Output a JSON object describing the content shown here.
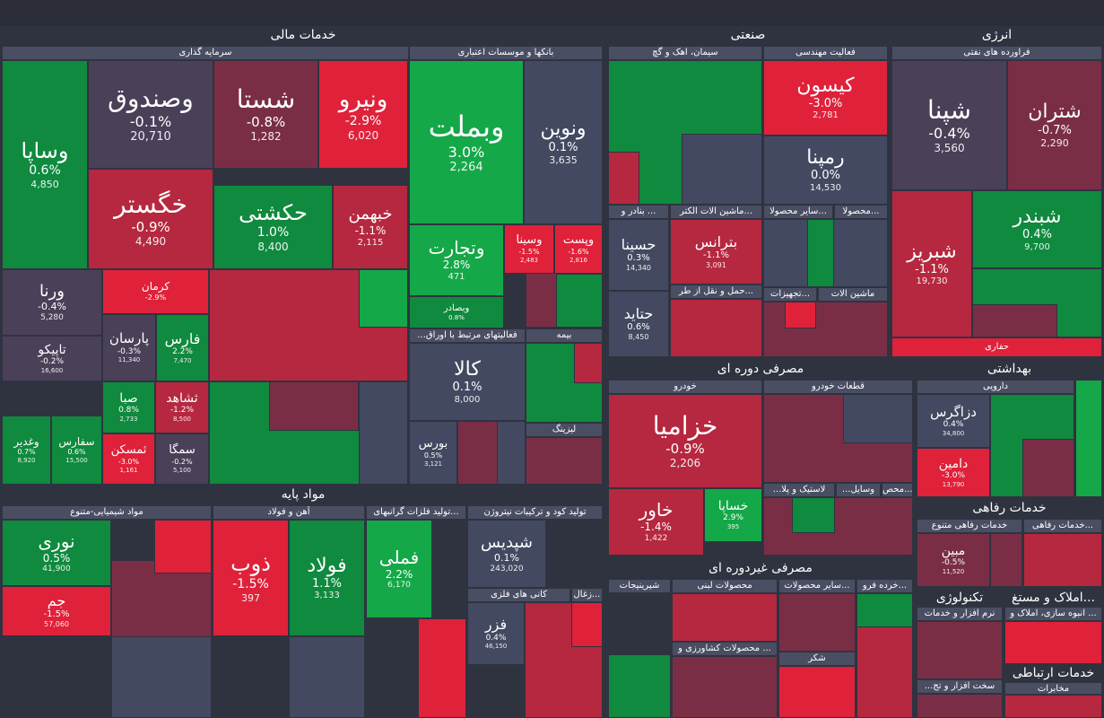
{
  "colors": {
    "background": "#2f3340",
    "header": "#4a4e63",
    "strong_green": "#14a848",
    "green": "#0f8a3e",
    "neutral": "#434960",
    "red": "#b5283f",
    "strong_red": "#e0213a",
    "dark_red": "#7a2e45"
  },
  "sectors": {
    "financial": "خدمات مالی",
    "industry": "صنعتی",
    "energy": "انرژی",
    "basic": "مواد پایه",
    "cyclical": "مصرفی دوره ای",
    "health": "بهداشتی",
    "welfare": "خدمات رفاهی",
    "noncyclical": "مصرفی غیردوره ای",
    "tech": "تکنولوژی",
    "realestate": "املاک و مستغ...",
    "telecom": "خدمات ارتباطی"
  },
  "industries": {
    "investment": "سرمایه گذاری",
    "banks": "بانکها و موسسات اعتباری",
    "cement": "سیمان، اهک و گچ",
    "engineering": "فعالیت مهندسی",
    "oil_products": "فراورده های نفتی",
    "financial_related": "...فعالیتهای مرتبط با اوراق",
    "insurance": "بیمه",
    "leasing": "لیزینگ",
    "ports": "بنادر و ...",
    "elec_machines": "ماشین الات الکتر...",
    "other_products": "سایر محصولا...",
    "products": "محصولا...",
    "transport": "حمل و نقل از طر...",
    "equipment": "تجهیزات...",
    "machinery": "ماشین الات",
    "refinery_trade": "حفاری",
    "chemical": "مواد شیمیایی-متنوع",
    "steel": "آهن و فولاد",
    "metals": "تولید فلزات گرانبهای...",
    "fertilizer": "تولید کود و ترکیبات نیتروژن",
    "metal_ores": "کانی های فلزی",
    "coal": "زغال...",
    "auto": "خودرو",
    "auto_parts": "قطعات خودرو",
    "rubber": "...لاستیک و پلا",
    "devices": "...وسایل",
    "prod": "محص...",
    "pharma": "دارویی",
    "welfare_misc": "خدمات رفاهی متنوع",
    "welfare2": "خدمات رفاهی...",
    "sweets": "شیرینیجات",
    "dairy": "محصولات لبنی",
    "other_prod2": "سایر محصولات...",
    "retail": "خرده فرو...",
    "agri": "محصولات کشاورزی و ...",
    "sugar": "شکر",
    "software": "نرم افزار و خدمات",
    "construction": "انبوه سازی، املاک و ...",
    "software2": "...سخت افزار و تج",
    "telecoms": "مخابرات"
  },
  "tiles": [
    {
      "name": "وساپا",
      "pct": "0.6%",
      "val": "4,850"
    },
    {
      "name": "وصندوق",
      "pct": "-0.1%",
      "val": "20,710"
    },
    {
      "name": "شستا",
      "pct": "-0.8%",
      "val": "1,282"
    },
    {
      "name": "ونیرو",
      "pct": "-2.9%",
      "val": "6,020"
    },
    {
      "name": "خگستر",
      "pct": "-0.9%",
      "val": "4,490"
    },
    {
      "name": "حکشتی",
      "pct": "1.0%",
      "val": "8,400"
    },
    {
      "name": "خبهمن",
      "pct": "-1.1%",
      "val": "2,115"
    },
    {
      "name": "وبملت",
      "pct": "3.0%",
      "val": "2,264"
    },
    {
      "name": "ونوین",
      "pct": "0.1%",
      "val": "3,635"
    },
    {
      "name": "وتجارت",
      "pct": "2.8%",
      "val": "471"
    },
    {
      "name": "وسینا",
      "pct": "-1.5%",
      "val": "2,483"
    },
    {
      "name": "وپست",
      "pct": "-1.6%",
      "val": "2,816"
    },
    {
      "name": "وبصادر",
      "pct": "0.8%",
      "val": ""
    },
    {
      "name": "ورنا",
      "pct": "-0.4%",
      "val": "5,280"
    },
    {
      "name": "کرمان",
      "pct": "-2.9%",
      "val": ""
    },
    {
      "name": "پارسان",
      "pct": "-0.3%",
      "val": "11,340"
    },
    {
      "name": "فارس",
      "pct": "2.2%",
      "val": "7,470"
    },
    {
      "name": "تاپیکو",
      "pct": "-0.2%",
      "val": "16,600"
    },
    {
      "name": "صبا",
      "pct": "0.8%",
      "val": "2,733"
    },
    {
      "name": "ثشاهد",
      "pct": "-1.2%",
      "val": "8,500"
    },
    {
      "name": "وغدیر",
      "pct": "0.7%",
      "val": "8,920"
    },
    {
      "name": "سفارس",
      "pct": "0.6%",
      "val": "15,500"
    },
    {
      "name": "ثمسکن",
      "pct": "-3.0%",
      "val": "1,161"
    },
    {
      "name": "سمگا",
      "pct": "-0.2%",
      "val": "5,100"
    },
    {
      "name": "کالا",
      "pct": "0.1%",
      "val": "8,000"
    },
    {
      "name": "بورس",
      "pct": "0.5%",
      "val": "3,121"
    },
    {
      "name": "کیسون",
      "pct": "-3.0%",
      "val": "2,781"
    },
    {
      "name": "رمپنا",
      "pct": "0.0%",
      "val": "14,530"
    },
    {
      "name": "حسینا",
      "pct": "0.3%",
      "val": "14,340"
    },
    {
      "name": "بترانس",
      "pct": "-1.1%",
      "val": "3,091"
    },
    {
      "name": "حتاید",
      "pct": "0.6%",
      "val": "8,450"
    },
    {
      "name": "شپنا",
      "pct": "-0.4%",
      "val": "3,560"
    },
    {
      "name": "شتران",
      "pct": "-0.7%",
      "val": "2,290"
    },
    {
      "name": "شبریز",
      "pct": "-1.1%",
      "val": "19,730"
    },
    {
      "name": "شبندر",
      "pct": "0.4%",
      "val": "9,700"
    },
    {
      "name": "نوری",
      "pct": "0.5%",
      "val": "41,900"
    },
    {
      "name": "جم",
      "pct": "-1.5%",
      "val": "57,060"
    },
    {
      "name": "ذوب",
      "pct": "-1.5%",
      "val": "397"
    },
    {
      "name": "فولاد",
      "pct": "1.1%",
      "val": "3,133"
    },
    {
      "name": "فملی",
      "pct": "2.2%",
      "val": "6,170"
    },
    {
      "name": "شپدیس",
      "pct": "0.1%",
      "val": "243,020"
    },
    {
      "name": "فزر",
      "pct": "0.4%",
      "val": "46,150"
    },
    {
      "name": "خزامیا",
      "pct": "-0.9%",
      "val": "2,206"
    },
    {
      "name": "خاور",
      "pct": "-1.4%",
      "val": "1,422"
    },
    {
      "name": "خساپا",
      "pct": "2.9%",
      "val": "395"
    },
    {
      "name": "دزاگرس",
      "pct": "0.4%",
      "val": "34,800"
    },
    {
      "name": "دامین",
      "pct": "-3.0%",
      "val": "13,790"
    },
    {
      "name": "مبین",
      "pct": "-0.5%",
      "val": "11,520"
    }
  ]
}
